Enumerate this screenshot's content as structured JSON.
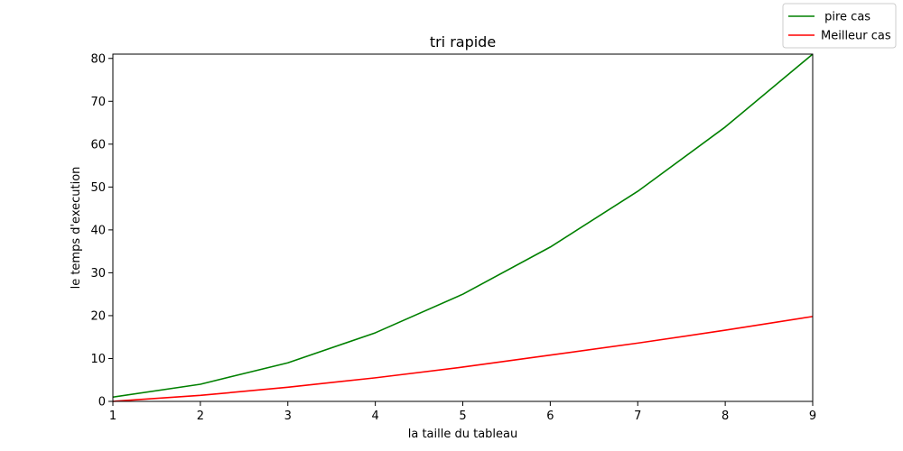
{
  "chart_data": {
    "type": "line",
    "title": "tri rapide",
    "xlabel": "la taille du tableau",
    "ylabel": "le temps d'execution",
    "xlim": [
      1,
      9
    ],
    "ylim": [
      0,
      81
    ],
    "x_ticks": [
      1,
      2,
      3,
      4,
      5,
      6,
      7,
      8,
      9
    ],
    "y_ticks": [
      0,
      10,
      20,
      30,
      40,
      50,
      60,
      70,
      80
    ],
    "grid": false,
    "legend_position": "top-right",
    "x": [
      1,
      2,
      3,
      4,
      5,
      6,
      7,
      8,
      9
    ],
    "series": [
      {
        "name": " pire cas",
        "color": "#008000",
        "values": [
          1,
          4,
          9,
          16,
          25,
          36,
          49,
          64,
          81
        ]
      },
      {
        "name": "Meilleur cas",
        "color": "#ff0000",
        "values": [
          0,
          1.4,
          3.3,
          5.5,
          8.0,
          10.8,
          13.6,
          16.6,
          19.8
        ]
      }
    ]
  }
}
